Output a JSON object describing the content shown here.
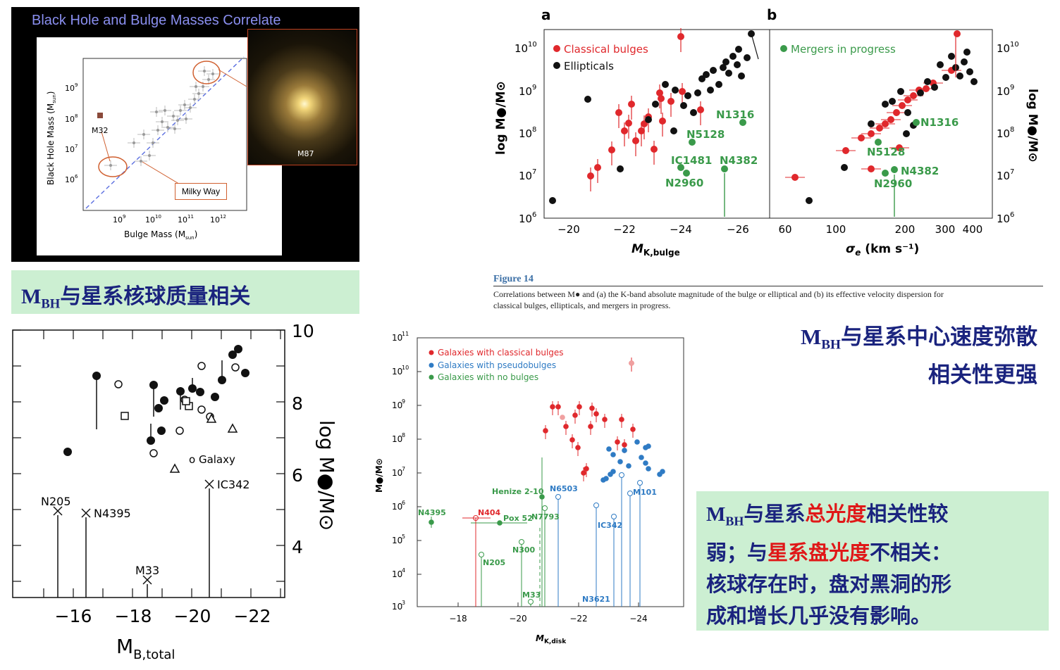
{
  "panel_tl": {
    "title": "Black Hole and Bulge Masses Correlate",
    "ylabel": "Black Hole Mass (M",
    "ylabel_sub": "sun",
    "ylabel_close": ")",
    "xlabel": "Bulge Mass (M",
    "xlabel_sub": "sun",
    "xlabel_close": ")",
    "m32": "M32",
    "milky_way": "Milky Way",
    "m87": "M87",
    "yticks": [
      "10",
      "10",
      "10",
      "10"
    ],
    "ytick_exp": [
      "9",
      "8",
      "7",
      "6"
    ],
    "xticks": [
      "10",
      "10",
      "10",
      "10"
    ],
    "xtick_exp": [
      "9",
      "10",
      "11",
      "12"
    ]
  },
  "caption1": {
    "m": "M",
    "bh": "BH",
    "rest": "与星系核球质量相关"
  },
  "panel_tr": {
    "label_a": "a",
    "label_b": "b",
    "legend_a": [
      "Classical bulges",
      "Ellipticals"
    ],
    "legend_b": [
      "Mergers in progress"
    ],
    "ylabel_left": "log M●/M⊙",
    "ylabel_right": "log M●/M⊙",
    "yticks": [
      "10",
      "10",
      "10",
      "10",
      "10"
    ],
    "ytick_exp": [
      "10",
      "9",
      "8",
      "7",
      "6"
    ],
    "xticks_a": [
      "−20",
      "−22",
      "−24",
      "−26"
    ],
    "xticks_b": [
      "60",
      "100",
      "200",
      "300",
      "400"
    ],
    "xlabel_a": "M",
    "xlabel_a_sub": "K,bulge",
    "xlabel_b": "σ",
    "xlabel_b_sub": "e",
    "xlabel_b_rest": " (km s⁻¹)",
    "ann_a": [
      "N1316",
      "N5128",
      "IC1481",
      "N4382",
      "N2960"
    ],
    "ann_b": [
      "N1316",
      "N5128",
      "N4382",
      "N2960"
    ],
    "fig_label": "Figure 14",
    "fig_caption_1": "Correlations between M● and (a) the K-band absolute magnitude of the bulge or elliptical and (b) its effective velocity dispersion for",
    "fig_caption_2": "classical bulges, ellipticals, and mergers in progress."
  },
  "caption2": {
    "m": "M",
    "bh": "BH",
    "line1": "与星系中心速度弥散",
    "line2": "相关性更强"
  },
  "panel_bl": {
    "xticks": [
      "−16",
      "−18",
      "−20",
      "−22"
    ],
    "yticks": [
      "10",
      "8",
      "6",
      "4"
    ],
    "xlabel": "M",
    "xlabel_sub": "B,total",
    "ylabel": "log M●/M⊙",
    "galaxy": "Galaxy",
    "labels": [
      "N205",
      "N4395",
      "IC342",
      "M33"
    ]
  },
  "panel_bm": {
    "legend": [
      "Galaxies with classical bulges",
      "Galaxies with pseudobulges",
      "Galaxies with no bulges"
    ],
    "yticks": [
      "10",
      "10",
      "10",
      "10",
      "10",
      "10",
      "10",
      "10",
      "10"
    ],
    "ytick_exp": [
      "11",
      "10",
      "9",
      "8",
      "7",
      "6",
      "5",
      "4",
      "3"
    ],
    "xticks": [
      "−18",
      "−20",
      "−22",
      "−24"
    ],
    "ylabel": "M●/M⊙",
    "xlabel": "M",
    "xlabel_sub": "K,disk",
    "labels": [
      "Henize 2-10",
      "N6503",
      "M101",
      "N4395",
      "N404",
      "Pox 52",
      "N7793",
      "IC342",
      "N300",
      "N205",
      "M33",
      "N3621"
    ]
  },
  "caption3": {
    "m": "M",
    "bh": "BH",
    "l1a": "与星系",
    "l1b": "总光度",
    "l1c": "相关性较",
    "l2a": "弱；与",
    "l2b": "星系盘光度",
    "l2c": "不相关：",
    "l3": "核球存在时，盘对黑洞的形",
    "l4": "成和增长几乎没有影响。"
  },
  "colors": {
    "classical": "#e0282c",
    "ellipticals": "#111111",
    "mergers": "#3a9a4a",
    "pseudo": "#2f7bc4",
    "title_blue": "#1a237e",
    "accent_red": "#e01818",
    "caption_bg": "#ccefd2"
  }
}
